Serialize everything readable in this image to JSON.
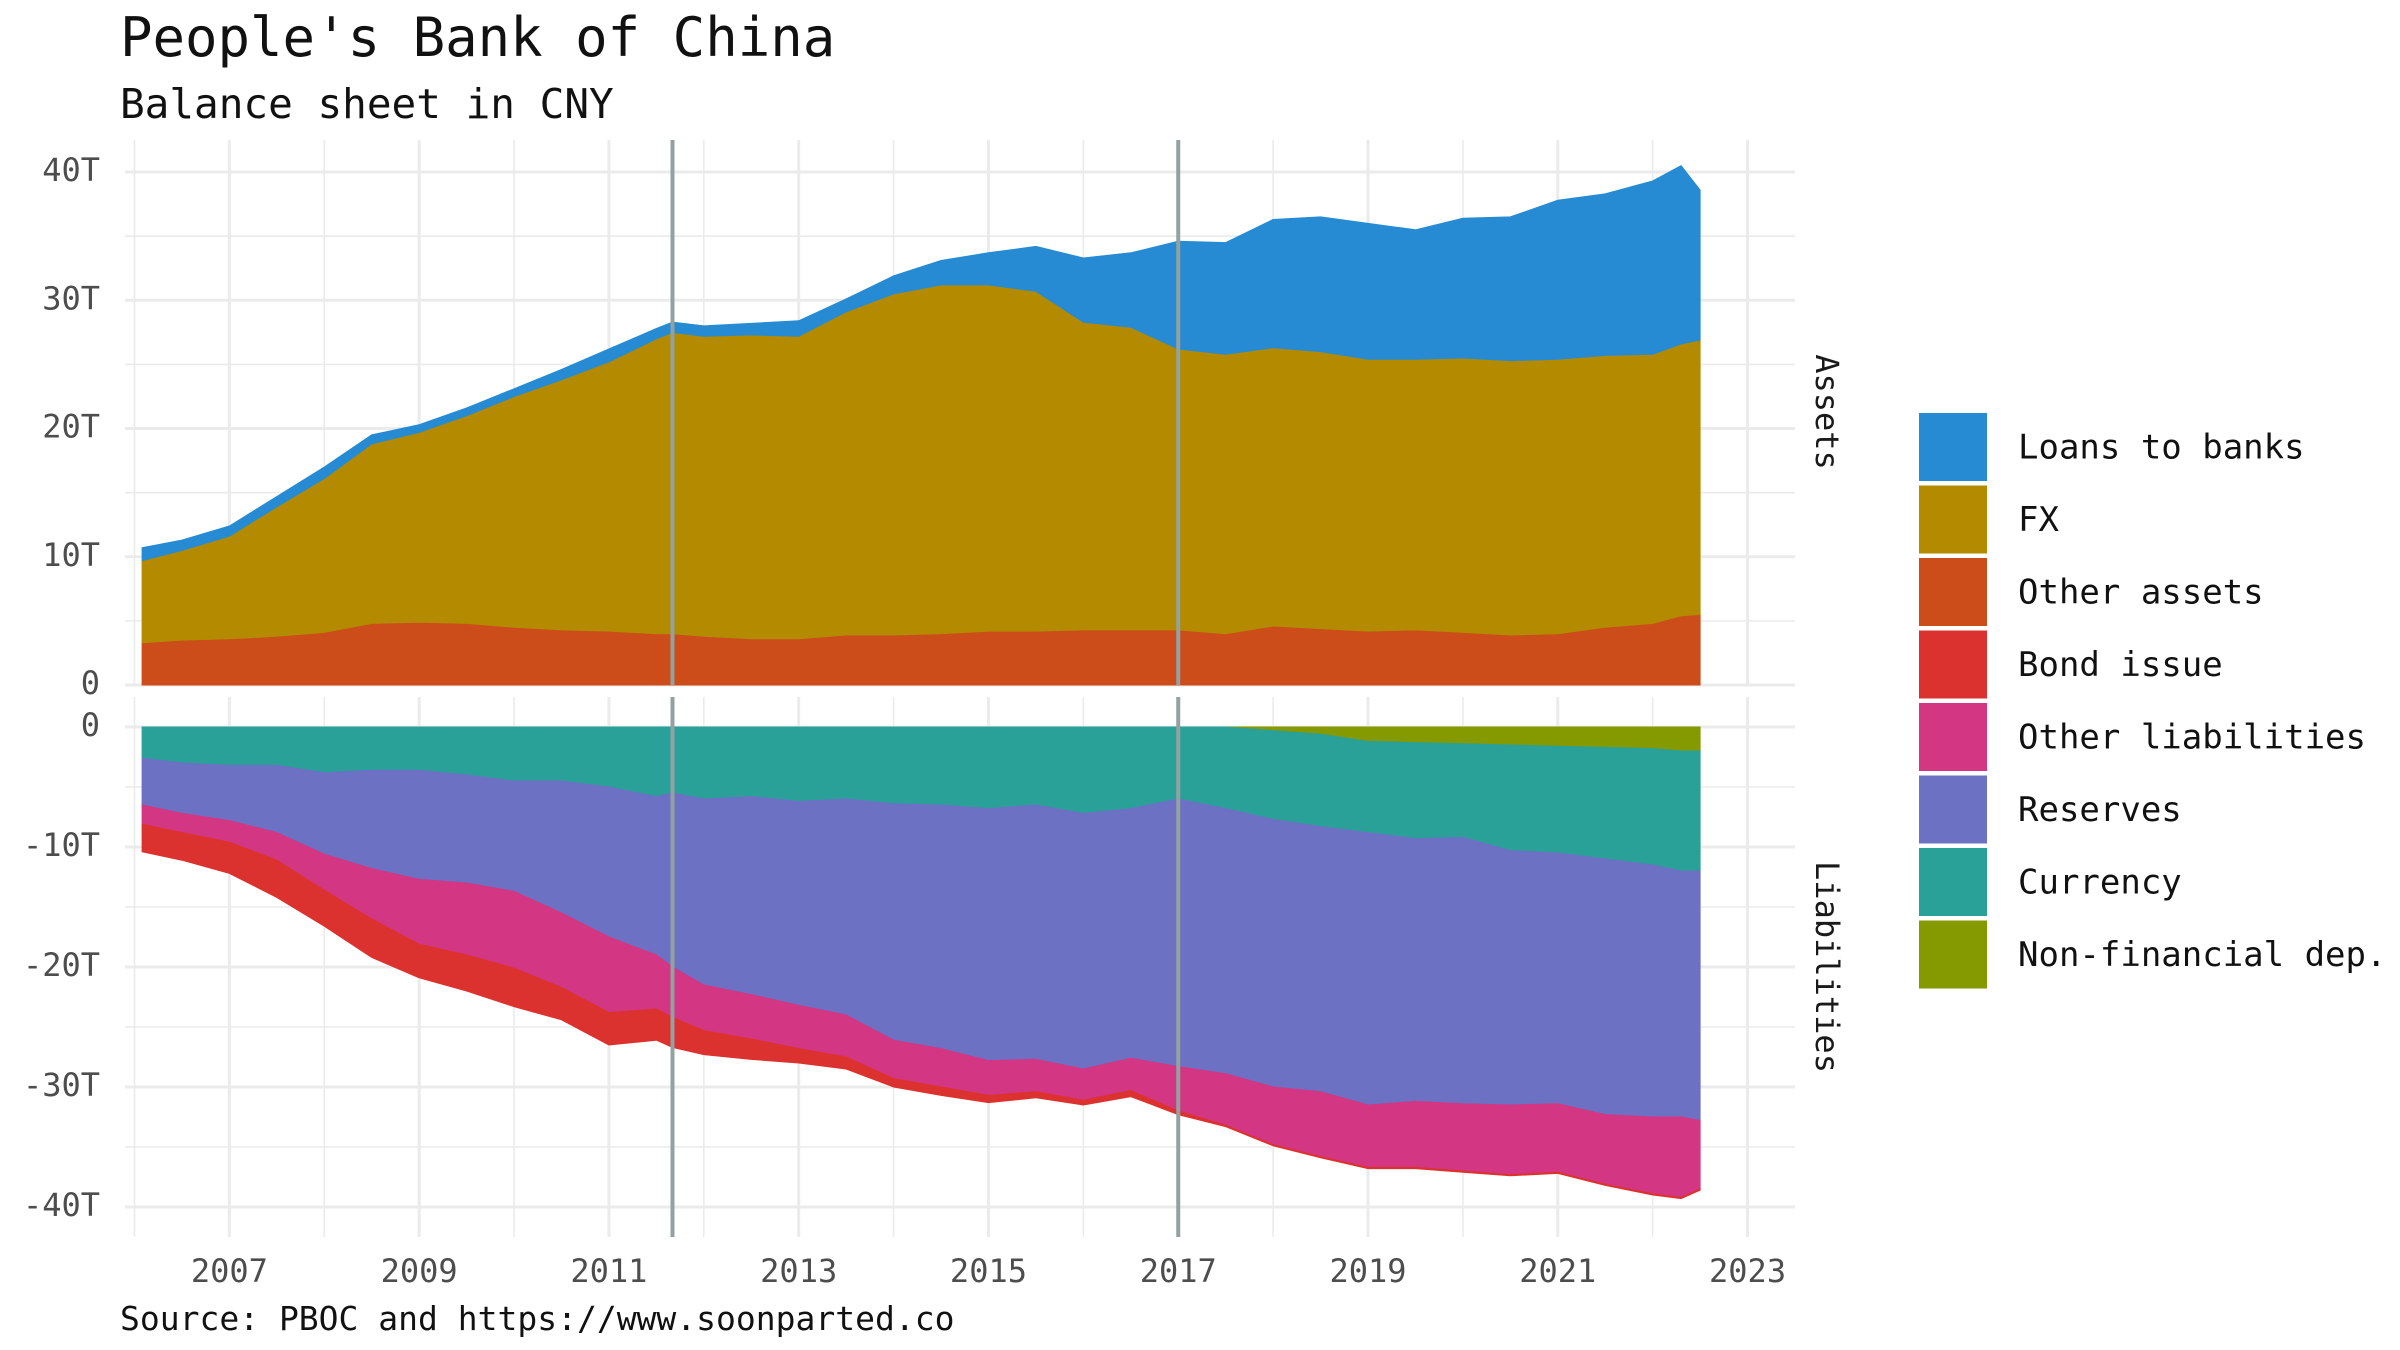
{
  "chart_data": {
    "type": "area",
    "title": "People's Bank of China",
    "subtitle": "Balance sheet in CNY",
    "caption": "Source: PBOC and https://www.soonparted.co",
    "xlabel": "",
    "ylabel": "",
    "x_ticks": [
      "2007",
      "2009",
      "2011",
      "2013",
      "2015",
      "2017",
      "2019",
      "2021",
      "2023"
    ],
    "x_range": [
      2005.9,
      2023.5
    ],
    "vlines": [
      2011.67,
      2017.0
    ],
    "grid": true,
    "legend_position": "right",
    "panels": [
      {
        "name": "Assets",
        "y_ticks": [
          "0",
          "10T",
          "20T",
          "30T",
          "40T"
        ],
        "ylim": [
          0,
          42.5
        ],
        "x": [
          2006.08,
          2006.5,
          2007.0,
          2007.5,
          2008.0,
          2008.5,
          2009.0,
          2009.5,
          2010.0,
          2010.5,
          2011.0,
          2011.5,
          2011.67,
          2012.0,
          2012.5,
          2013.0,
          2013.5,
          2014.0,
          2014.5,
          2015.0,
          2015.5,
          2016.0,
          2016.5,
          2017.0,
          2017.5,
          2018.0,
          2018.5,
          2019.0,
          2019.5,
          2020.0,
          2020.5,
          2021.0,
          2021.5,
          2022.0,
          2022.3,
          2022.5
        ],
        "series": [
          {
            "name": "Other assets",
            "color": "#cc4c1a",
            "values": [
              3.3,
              3.5,
              3.6,
              3.8,
              4.1,
              4.8,
              4.9,
              4.8,
              4.5,
              4.3,
              4.2,
              4.0,
              4.0,
              3.8,
              3.6,
              3.6,
              3.9,
              3.9,
              4.0,
              4.2,
              4.2,
              4.3,
              4.3,
              4.3,
              4.0,
              4.6,
              4.4,
              4.2,
              4.3,
              4.1,
              3.9,
              4.0,
              4.5,
              4.8,
              5.4,
              5.5
            ]
          },
          {
            "name": "FX",
            "color": "#b38a00",
            "values": [
              6.4,
              7.0,
              8.0,
              10.1,
              12.0,
              14.0,
              14.8,
              16.2,
              18.0,
              19.5,
              21.0,
              23.0,
              23.5,
              23.4,
              23.7,
              23.6,
              25.2,
              26.6,
              27.2,
              27.0,
              26.5,
              24.0,
              23.6,
              21.9,
              21.8,
              21.7,
              21.6,
              21.2,
              21.1,
              21.4,
              21.4,
              21.4,
              21.2,
              21.0,
              21.2,
              21.4
            ]
          },
          {
            "name": "Loans to banks",
            "color": "#268bd2",
            "values": [
              1.0,
              0.8,
              0.8,
              0.8,
              0.9,
              0.7,
              0.6,
              0.6,
              0.6,
              0.8,
              1.0,
              0.8,
              0.8,
              0.8,
              0.9,
              1.2,
              1.0,
              1.4,
              1.9,
              2.5,
              3.5,
              5.0,
              5.8,
              8.4,
              8.7,
              10.0,
              10.5,
              10.6,
              10.1,
              10.9,
              11.2,
              12.4,
              12.6,
              13.5,
              13.9,
              11.7
            ]
          }
        ]
      },
      {
        "name": "Liabilities",
        "y_ticks": [
          "-40T",
          "-30T",
          "-20T",
          "-10T",
          "0"
        ],
        "ylim": [
          -42.5,
          2.5
        ],
        "x": [
          2006.08,
          2006.5,
          2007.0,
          2007.5,
          2008.0,
          2008.5,
          2009.0,
          2009.5,
          2010.0,
          2010.5,
          2011.0,
          2011.5,
          2011.67,
          2012.0,
          2012.5,
          2013.0,
          2013.5,
          2014.0,
          2014.5,
          2015.0,
          2015.5,
          2016.0,
          2016.5,
          2017.0,
          2017.5,
          2018.0,
          2018.5,
          2019.0,
          2019.5,
          2020.0,
          2020.5,
          2021.0,
          2021.5,
          2022.0,
          2022.3,
          2022.5
        ],
        "series": [
          {
            "name": "Non-financial dep.",
            "color": "#859900",
            "values": [
              0,
              0,
              0,
              0,
              0,
              0,
              0,
              0,
              0,
              0,
              0,
              0,
              0,
              0,
              0,
              0,
              0,
              0,
              0,
              0,
              0,
              0,
              0,
              0,
              0,
              -0.3,
              -0.6,
              -1.2,
              -1.3,
              -1.4,
              -1.5,
              -1.6,
              -1.7,
              -1.8,
              -2.0,
              -2.0
            ]
          },
          {
            "name": "Currency",
            "color": "#2aa198",
            "values": [
              -2.6,
              -3.0,
              -3.2,
              -3.2,
              -3.8,
              -3.6,
              -3.6,
              -4.0,
              -4.5,
              -4.5,
              -5.0,
              -5.8,
              -5.5,
              -6.0,
              -5.8,
              -6.2,
              -6.0,
              -6.4,
              -6.5,
              -6.8,
              -6.5,
              -7.2,
              -6.8,
              -6.0,
              -6.8,
              -7.4,
              -7.7,
              -7.6,
              -8.0,
              -7.8,
              -8.8,
              -8.9,
              -9.3,
              -9.7,
              -10.0,
              -10.0
            ]
          },
          {
            "name": "Reserves",
            "color": "#6c71c4",
            "values": [
              -3.9,
              -4.2,
              -4.6,
              -5.6,
              -6.8,
              -8.2,
              -9.1,
              -9.0,
              -9.2,
              -11.0,
              -12.5,
              -13.2,
              -14.5,
              -15.5,
              -16.5,
              -17.0,
              -18.0,
              -19.7,
              -20.3,
              -21.0,
              -21.2,
              -21.3,
              -20.8,
              -22.3,
              -22.1,
              -22.3,
              -22.1,
              -22.7,
              -21.9,
              -22.2,
              -21.2,
              -20.9,
              -21.3,
              -21.0,
              -20.5,
              -20.8
            ]
          },
          {
            "name": "Other liabilities",
            "color": "#d33682",
            "values": [
              -1.6,
              -1.6,
              -1.8,
              -2.3,
              -3.0,
              -4.2,
              -5.4,
              -6.0,
              -6.4,
              -6.2,
              -6.3,
              -4.5,
              -4.2,
              -3.8,
              -3.7,
              -3.6,
              -3.5,
              -3.2,
              -3.2,
              -2.9,
              -2.7,
              -2.6,
              -2.7,
              -3.7,
              -4.3,
              -4.8,
              -5.4,
              -5.2,
              -5.5,
              -5.6,
              -5.8,
              -5.7,
              -5.8,
              -6.4,
              -6.7,
              -5.7
            ]
          },
          {
            "name": "Bond issue",
            "color": "#dc322f",
            "values": [
              -2.3,
              -2.3,
              -2.6,
              -3.1,
              -3.0,
              -3.2,
              -2.8,
              -3.0,
              -3.2,
              -2.7,
              -2.7,
              -2.6,
              -2.5,
              -2.0,
              -1.7,
              -1.2,
              -1.0,
              -0.7,
              -0.7,
              -0.6,
              -0.5,
              -0.4,
              -0.5,
              -0.3,
              -0.1,
              -0.1,
              -0.1,
              -0.1,
              -0.1,
              -0.1,
              -0.1,
              -0.1,
              -0.1,
              -0.1,
              -0.1,
              -0.1
            ]
          }
        ]
      }
    ],
    "legend": [
      "Loans to banks",
      "FX",
      "Other assets",
      "Bond issue",
      "Other liabilities",
      "Reserves",
      "Currency",
      "Non-financial dep."
    ]
  },
  "colors": {
    "Loans to banks": "#268bd2",
    "FX": "#b38a00",
    "Other assets": "#cc4c1a",
    "Bond issue": "#dc322f",
    "Other liabilities": "#d33682",
    "Reserves": "#6c71c4",
    "Currency": "#2aa198",
    "Non-financial dep.": "#859900",
    "vline": "#93a1a1",
    "grid": "#ebebeb"
  }
}
